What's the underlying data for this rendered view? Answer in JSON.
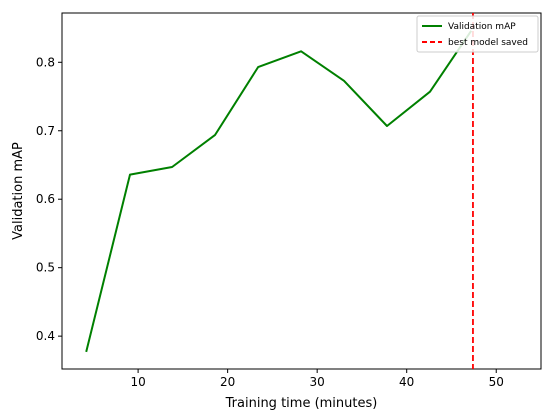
{
  "chart_data": {
    "type": "line",
    "title": "",
    "xlabel": "Training time (minutes)",
    "ylabel": "Validation mAP",
    "xlim": [
      1.5,
      55
    ],
    "ylim": [
      0.352,
      0.872
    ],
    "xticks": [
      10,
      20,
      30,
      40,
      50
    ],
    "yticks": [
      0.4,
      0.5,
      0.6,
      0.7,
      0.8
    ],
    "ytick_labels": [
      "0.4",
      "0.5",
      "0.6",
      "0.7",
      "0.8"
    ],
    "grid": false,
    "legend_position": "top-right",
    "series": [
      {
        "name": "Validation mAP",
        "color": "#008000",
        "style": "solid",
        "x": [
          4.2,
          9.1,
          13.8,
          18.6,
          23.4,
          28.2,
          33.0,
          37.8,
          42.6,
          47.2
        ],
        "y": [
          0.377,
          0.636,
          0.647,
          0.694,
          0.793,
          0.816,
          0.773,
          0.707,
          0.757,
          0.846
        ]
      }
    ],
    "vlines": [
      {
        "name": "best model saved",
        "x": 47.4,
        "color": "#ff0000",
        "style": "dashed"
      }
    ]
  }
}
